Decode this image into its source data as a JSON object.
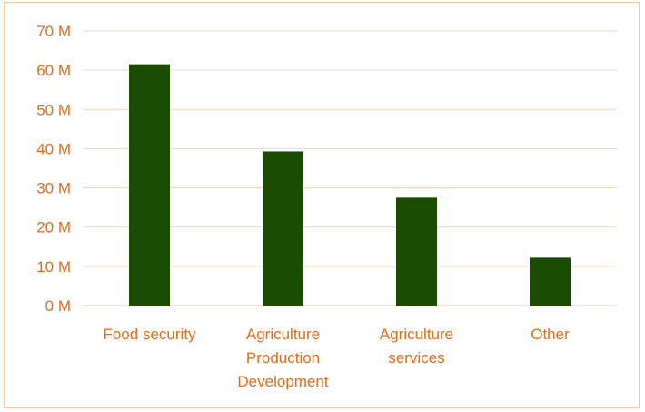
{
  "chart_data": {
    "type": "bar",
    "title": "",
    "xlabel": "",
    "ylabel": "",
    "categories": [
      [
        "Food security"
      ],
      [
        "Agriculture",
        "Production",
        "Development"
      ],
      [
        "Agriculture",
        "services"
      ],
      [
        "Other"
      ]
    ],
    "values": [
      61.5,
      39.3,
      27.5,
      12.2
    ],
    "unit_suffix": " M",
    "ylim": [
      0,
      70
    ],
    "yticks": [
      0,
      10,
      20,
      30,
      40,
      50,
      60,
      70
    ],
    "grid": true,
    "legend": "none",
    "colors": {
      "bar": "#1a4c00",
      "label": "#e56a1a",
      "grid": "#f6d3b8",
      "frame": "#f6c9a6"
    }
  }
}
